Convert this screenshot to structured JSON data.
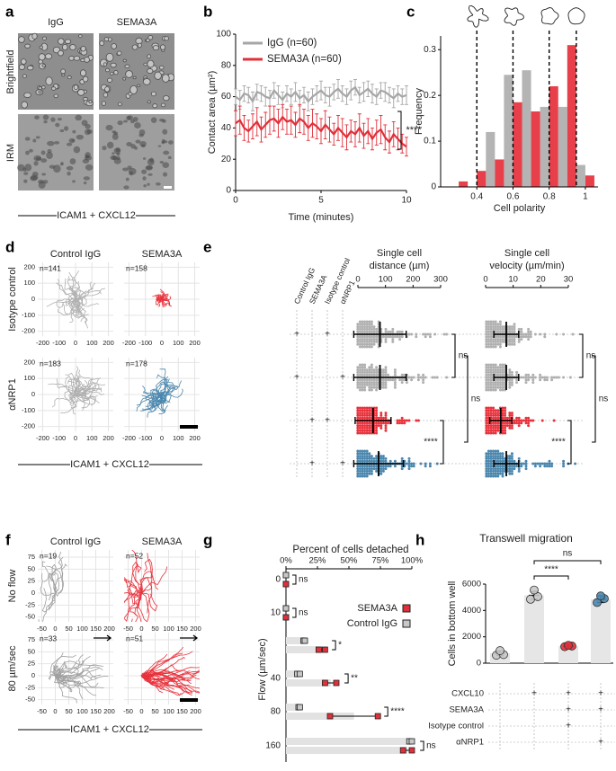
{
  "figure": {
    "panel_labels": [
      "a",
      "b",
      "c",
      "d",
      "e",
      "f",
      "g",
      "h"
    ]
  },
  "panel_a": {
    "columns": [
      "IgG",
      "SEMA3A"
    ],
    "rows": [
      "Brightfield",
      "IRM"
    ],
    "condition": "ICAM1 + CXCL12"
  },
  "chart_data": [
    {
      "type": "line",
      "xlabel": "Time (minutes)",
      "ylabel": "Contact area (µm²)",
      "x": [
        0,
        0.25,
        0.5,
        0.75,
        1,
        1.25,
        1.5,
        1.75,
        2,
        2.25,
        2.5,
        2.75,
        3,
        3.25,
        3.5,
        3.75,
        4,
        4.25,
        4.5,
        4.75,
        5,
        5.25,
        5.5,
        5.75,
        6,
        6.25,
        6.5,
        6.75,
        7,
        7.25,
        7.5,
        7.75,
        8,
        8.25,
        8.5,
        8.75,
        9,
        9.25,
        9.5,
        9.75,
        10
      ],
      "xlim": [
        0,
        10
      ],
      "xticks": [
        0,
        5,
        10
      ],
      "ylim": [
        0,
        100
      ],
      "yticks": [
        0,
        20,
        40,
        60,
        80,
        100
      ],
      "series": [
        {
          "name": "IgG (n=60)",
          "color": "#a6a6a6",
          "values": [
            60,
            58,
            62,
            61,
            57,
            63,
            62,
            60,
            59,
            64,
            61,
            58,
            62,
            60,
            63,
            59,
            61,
            57,
            60,
            62,
            64,
            61,
            60,
            63,
            65,
            62,
            60,
            64,
            66,
            61,
            63,
            65,
            62,
            60,
            64,
            63,
            61,
            59,
            62,
            60,
            61
          ],
          "errors": [
            5,
            6,
            5,
            5,
            6,
            5,
            5,
            6,
            5,
            5,
            6,
            5,
            5,
            5,
            6,
            5,
            5,
            6,
            5,
            5,
            6,
            5,
            6,
            5,
            6,
            5,
            5,
            6,
            5,
            5,
            6,
            5,
            6,
            5,
            5,
            6,
            5,
            6,
            5,
            5,
            6
          ]
        },
        {
          "name": "SEMA3A (n=60)",
          "color": "#e0303a",
          "values": [
            43,
            45,
            40,
            38,
            41,
            44,
            39,
            42,
            45,
            46,
            43,
            47,
            44,
            45,
            42,
            46,
            44,
            40,
            43,
            41,
            38,
            42,
            39,
            36,
            40,
            37,
            34,
            38,
            36,
            40,
            35,
            38,
            33,
            37,
            39,
            34,
            31,
            36,
            33,
            30,
            28
          ],
          "errors": [
            8,
            9,
            8,
            7,
            8,
            9,
            8,
            8,
            9,
            8,
            9,
            8,
            8,
            9,
            8,
            9,
            8,
            8,
            9,
            8,
            8,
            9,
            8,
            7,
            8,
            9,
            8,
            7,
            8,
            9,
            8,
            8,
            7,
            8,
            9,
            8,
            7,
            8,
            7,
            6,
            6
          ]
        }
      ],
      "annotation": "****"
    },
    {
      "type": "histogram",
      "xlabel": "Cell polarity",
      "ylabel": "Frequency",
      "bins": [
        0.25,
        0.35,
        0.45,
        0.55,
        0.65,
        0.75,
        0.85,
        0.95,
        1.05
      ],
      "series": [
        {
          "color": "#b4b4b4",
          "values": [
            0,
            0,
            0.12,
            0.245,
            0.255,
            0.175,
            0.175,
            0.048
          ]
        },
        {
          "color": "#e8404a",
          "values": [
            0.012,
            0.035,
            0.06,
            0.185,
            0.165,
            0.22,
            0.31,
            0.025
          ]
        }
      ],
      "xlim": [
        0.2,
        1.07
      ],
      "xticks": [
        0.4,
        0.6,
        0.8,
        1
      ],
      "ylim": [
        0,
        0.33
      ],
      "yticks": [
        0,
        0.1,
        0.2,
        0.3
      ],
      "vlines": [
        0.4,
        0.6,
        0.8,
        0.95
      ]
    },
    {
      "type": "track",
      "columns": [
        "Control IgG",
        "SEMA3A"
      ],
      "rows": [
        "Isotype control",
        "αNRP1"
      ],
      "n_labels": [
        [
          "n=141",
          "n=158"
        ],
        [
          "n=183",
          "n=178"
        ]
      ],
      "colors": [
        [
          "#b0b0b0",
          "#e8323c"
        ],
        [
          "#b0b0b0",
          "#4a86ad"
        ]
      ],
      "xlim": [
        -230,
        230
      ],
      "xticks": [
        -200,
        -100,
        0,
        100,
        200
      ],
      "ylim": [
        -230,
        230
      ],
      "yticks": [
        -200,
        -100,
        0,
        100,
        200
      ],
      "condition": "ICAM1 + CXCL12"
    },
    {
      "type": "dot",
      "design_columns": [
        "Control IgG",
        "SEMA3A",
        "Isotype control",
        "αNRP1"
      ],
      "design": [
        [
          "+",
          null,
          "+",
          null
        ],
        [
          "+",
          null,
          null,
          "+"
        ],
        [
          null,
          "+",
          "+",
          null
        ],
        [
          null,
          "+",
          null,
          "+"
        ]
      ],
      "colors": [
        "#b0b0b0",
        "#b0b0b0",
        "#e8323c",
        "#4a86ad"
      ],
      "panels": [
        {
          "title": [
            "Single cell",
            "distance (µm)"
          ],
          "xlim": [
            0,
            300
          ],
          "xticks": [
            0,
            100,
            200,
            300
          ],
          "means": [
            80,
            80,
            55,
            75
          ],
          "sd": [
            95,
            95,
            65,
            90
          ],
          "significance": [
            "ns",
            "****",
            "ns"
          ]
        },
        {
          "title": [
            "Single cell",
            "velocity (µm/min)"
          ],
          "xlim": [
            0,
            30
          ],
          "xticks": [
            0,
            10,
            20,
            30
          ],
          "means": [
            7.5,
            7.5,
            5.5,
            7.5
          ],
          "sd": [
            4.5,
            4.5,
            4,
            4.5
          ],
          "significance": [
            "ns",
            "****",
            "ns"
          ]
        }
      ]
    },
    {
      "type": "track",
      "columns": [
        "Control IgG",
        "SEMA3A"
      ],
      "rows": [
        "No flow",
        "80 µm/sec"
      ],
      "n_labels": [
        [
          "n=19",
          "n=52"
        ],
        [
          "n=33",
          "n=51"
        ]
      ],
      "colors": [
        [
          "#a0a0a0",
          "#e8323c"
        ],
        [
          "#a0a0a0",
          "#e8323c"
        ]
      ],
      "xlim": [
        -65,
        215
      ],
      "xticks": [
        -50,
        0,
        50,
        100,
        150,
        200
      ],
      "ylim": [
        -60,
        90
      ],
      "yticks": [
        -50,
        -25,
        0,
        25,
        50,
        75
      ],
      "condition": "ICAM1 + CXCL12"
    },
    {
      "type": "dot-h",
      "title": "Percent of cells detached",
      "ylabel": "Flow (µm/sec)",
      "categories": [
        0,
        10,
        null,
        40,
        80,
        160
      ],
      "xlim": [
        0,
        100
      ],
      "xticks": [
        {
          "value": 0,
          "label": "0%"
        },
        {
          "value": 25,
          "label": "25%"
        },
        {
          "value": 50,
          "label": "50%"
        },
        {
          "value": 75,
          "label": "75%"
        },
        {
          "value": 100,
          "label": "100%"
        }
      ],
      "series": [
        {
          "name": "SEMA3A",
          "color": "#e0303a",
          "points": [
            [
              0,
              0
            ],
            [
              0,
              0
            ],
            [
              26,
              31
            ],
            [
              31,
              40
            ],
            [
              35,
              73
            ],
            [
              93,
              100
            ]
          ],
          "means": [
            0,
            0,
            28.5,
            35.5,
            54,
            96.5
          ],
          "errors": [
            0,
            0,
            3,
            6,
            19,
            5
          ]
        },
        {
          "name": "Control IgG",
          "color": "#c8c8c8",
          "points": [
            [
              0,
              0
            ],
            [
              0,
              0
            ],
            [
              14,
              15
            ],
            [
              9,
              11
            ],
            [
              10,
              11
            ],
            [
              98,
              100
            ]
          ],
          "means": [
            0,
            0,
            14.5,
            10,
            10.5,
            99
          ],
          "errors": [
            0,
            0,
            1,
            1,
            1,
            1
          ]
        }
      ],
      "significance": [
        "ns",
        "ns",
        "*",
        "**",
        "****",
        "ns"
      ]
    },
    {
      "type": "bar",
      "title": "Transwell migration",
      "ylabel": "Cells in bottom well",
      "ylim": [
        0,
        6000
      ],
      "yticks": [
        0,
        2000,
        4000,
        6000
      ],
      "values": [
        750,
        5150,
        1300,
        4850
      ],
      "errors": [
        180,
        300,
        60,
        250
      ],
      "points": [
        [
          600,
          650,
          950
        ],
        [
          4850,
          5050,
          5550
        ],
        [
          1250,
          1300,
          1350
        ],
        [
          4600,
          4900,
          5100
        ]
      ],
      "colors": [
        "#c8c8c8",
        "#c8c8c8",
        "#e0303a",
        "#4a86ad"
      ],
      "bar_color": "#e6e6e6",
      "significance": [
        "****",
        "ns"
      ],
      "table": {
        "rows": [
          "CXCL10",
          "SEMA3A",
          "Isotype control",
          "αNRP1"
        ],
        "cells": [
          [
            null,
            "+",
            "+",
            "+"
          ],
          [
            null,
            null,
            "+",
            "+"
          ],
          [
            null,
            null,
            "+",
            null
          ],
          [
            null,
            null,
            null,
            "+"
          ]
        ]
      }
    }
  ]
}
